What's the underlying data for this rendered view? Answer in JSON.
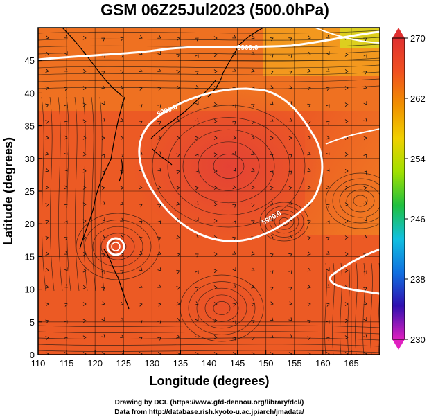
{
  "chart_data": {
    "type": "heatmap",
    "title": "GSM 06Z25Jul2023 (500.0hPa)",
    "xlabel": "Longitude (degrees)",
    "ylabel": "Latitude  (degrees)",
    "xlim": [
      110,
      170
    ],
    "ylim": [
      0,
      50
    ],
    "xticks": [
      "110",
      "115",
      "120",
      "125",
      "130",
      "135",
      "140",
      "145",
      "150",
      "155",
      "160",
      "165"
    ],
    "yticks": [
      "0",
      "5",
      "10",
      "15",
      "20",
      "25",
      "30",
      "35",
      "40",
      "45"
    ],
    "colorbar": {
      "ticks": [
        "230",
        "238",
        "246",
        "254",
        "262",
        "270"
      ],
      "range": [
        230,
        270
      ],
      "colors": [
        "#e020c0",
        "#3010b0",
        "#1070e0",
        "#10c0e0",
        "#20c040",
        "#a0e000",
        "#f0d000",
        "#f09000",
        "#f05020",
        "#e03030"
      ]
    },
    "contours": [
      {
        "label": "5900.0",
        "level": 5900
      },
      {
        "label": "5900.0",
        "level": 5900
      },
      {
        "label": "5900.0",
        "level": 5900
      }
    ],
    "grid": true
  },
  "credits": {
    "line1": "Drawing by DCL (https://www.gfd-dennou.org/library/dcl/)",
    "line2": "Data from http://database.rish.kyoto-u.ac.jp/arch/jmadata/"
  }
}
